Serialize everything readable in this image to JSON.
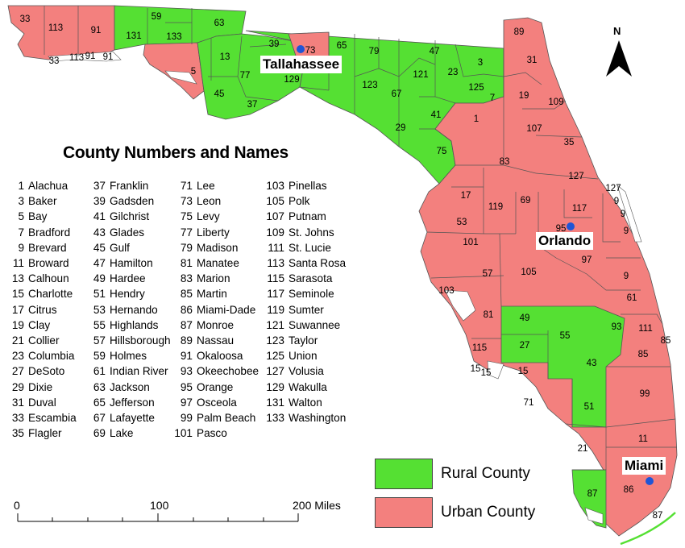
{
  "legend": {
    "title": "County Numbers and Names",
    "columns": [
      [
        [
          "1",
          "Alachua"
        ],
        [
          "3",
          "Baker"
        ],
        [
          "5",
          "Bay"
        ],
        [
          "7",
          "Bradford"
        ],
        [
          "9",
          "Brevard"
        ],
        [
          "11",
          "Broward"
        ],
        [
          "13",
          "Calhoun"
        ],
        [
          "15",
          "Charlotte"
        ],
        [
          "17",
          "Citrus"
        ],
        [
          "19",
          "Clay"
        ],
        [
          "21",
          "Collier"
        ],
        [
          "23",
          "Columbia"
        ],
        [
          "27",
          "DeSoto"
        ],
        [
          "29",
          "Dixie"
        ],
        [
          "31",
          "Duval"
        ],
        [
          "33",
          "Escambia"
        ],
        [
          "35",
          "Flagler"
        ]
      ],
      [
        [
          "37",
          "Franklin"
        ],
        [
          "39",
          "Gadsden"
        ],
        [
          "41",
          "Gilchrist"
        ],
        [
          "43",
          "Glades"
        ],
        [
          "45",
          "Gulf"
        ],
        [
          "47",
          "Hamilton"
        ],
        [
          "49",
          "Hardee"
        ],
        [
          "51",
          "Hendry"
        ],
        [
          "53",
          "Hernando"
        ],
        [
          "55",
          "Highlands"
        ],
        [
          "57",
          "Hillsborough"
        ],
        [
          "59",
          "Holmes"
        ],
        [
          "61",
          "Indian River"
        ],
        [
          "63",
          "Jackson"
        ],
        [
          "65",
          "Jefferson"
        ],
        [
          "67",
          "Lafayette"
        ],
        [
          "69",
          "Lake"
        ]
      ],
      [
        [
          "71",
          "Lee"
        ],
        [
          "73",
          "Leon"
        ],
        [
          "75",
          "Levy"
        ],
        [
          "77",
          "Liberty"
        ],
        [
          "79",
          "Madison"
        ],
        [
          "81",
          "Manatee"
        ],
        [
          "83",
          "Marion"
        ],
        [
          "85",
          "Martin"
        ],
        [
          "86",
          "Miami-Dade"
        ],
        [
          "87",
          "Monroe"
        ],
        [
          "89",
          "Nassau"
        ],
        [
          "91",
          "Okaloosa"
        ],
        [
          "93",
          "Okeechobee"
        ],
        [
          "95",
          "Orange"
        ],
        [
          "97",
          "Osceola"
        ],
        [
          "99",
          "Palm Beach"
        ],
        [
          "101",
          "Pasco"
        ]
      ],
      [
        [
          "103",
          "Pinellas"
        ],
        [
          "105",
          "Polk"
        ],
        [
          "107",
          "Putnam"
        ],
        [
          "109",
          "St. Johns"
        ],
        [
          "111",
          "St. Lucie"
        ],
        [
          "113",
          "Santa Rosa"
        ],
        [
          "115",
          "Sarasota"
        ],
        [
          "117",
          "Seminole"
        ],
        [
          "119",
          "Sumter"
        ],
        [
          "121",
          "Suwannee"
        ],
        [
          "123",
          "Taylor"
        ],
        [
          "125",
          "Union"
        ],
        [
          "127",
          "Volusia"
        ],
        [
          "129",
          "Wakulla"
        ],
        [
          "131",
          "Walton"
        ],
        [
          "133",
          "Washington"
        ]
      ]
    ]
  },
  "key": {
    "rural": {
      "label": "Rural County",
      "color": "#55e033"
    },
    "urban": {
      "label": "Urban County",
      "color": "#f3807e"
    }
  },
  "cities": {
    "tallahassee": "Tallahassee",
    "orlando": "Orlando",
    "miami": "Miami"
  },
  "city_marker_color": "#1f55d6",
  "scale_bar": {
    "zero": "0",
    "mid": "100",
    "end": "200 Miles"
  },
  "north_arrow": {
    "label": "N"
  },
  "county_labels": {
    "west": [
      "33",
      "113",
      "91",
      "131",
      "59",
      "133",
      "63",
      "5",
      "13",
      "45",
      "77",
      "37",
      "39",
      "73",
      "129",
      "33",
      "113",
      "91",
      "91"
    ],
    "north": [
      "65",
      "79",
      "47",
      "3",
      "123",
      "121",
      "23",
      "125",
      "7",
      "67",
      "41",
      "29",
      "75",
      "1",
      "89",
      "31",
      "19",
      "109"
    ],
    "central": [
      "107",
      "35",
      "83",
      "127",
      "127",
      "9",
      "117",
      "9",
      "9",
      "17",
      "119",
      "69",
      "53",
      "95",
      "101",
      "97",
      "57",
      "105",
      "103",
      "9",
      "61",
      "81",
      "49",
      "55",
      "93",
      "111",
      "115",
      "27",
      "85",
      "43",
      "15",
      "15",
      "15",
      "71",
      "51",
      "99",
      "11",
      "21",
      "86",
      "87",
      "87"
    ]
  }
}
